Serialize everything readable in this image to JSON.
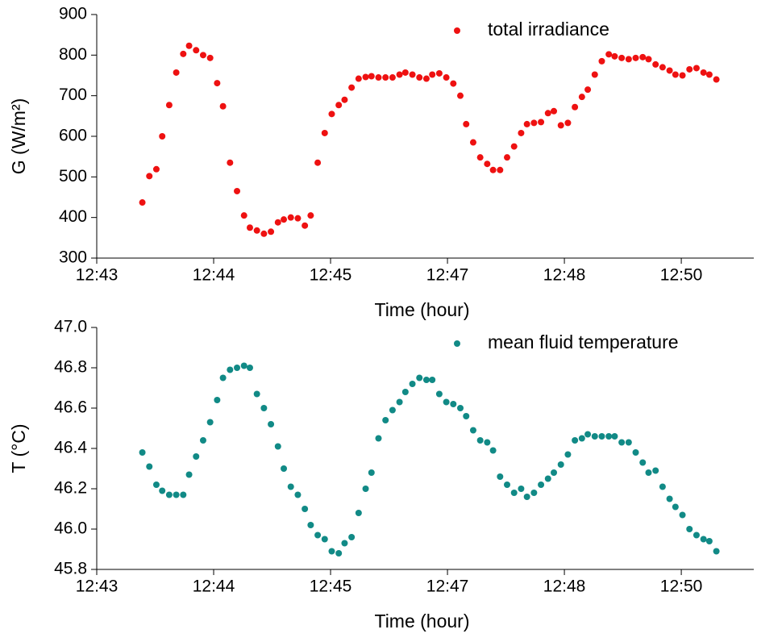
{
  "chart_data": [
    {
      "type": "scatter",
      "ylabel": "G (W/m²)",
      "xlabel": "Time (hour)",
      "xlim": [
        0,
        5.62
      ],
      "xticks": [
        {
          "value": 0,
          "label": "12:43"
        },
        {
          "value": 1,
          "label": "12:44"
        },
        {
          "value": 2,
          "label": "12:45"
        },
        {
          "value": 3,
          "label": "12:47"
        },
        {
          "value": 4,
          "label": "12:48"
        },
        {
          "value": 5,
          "label": "12:50"
        }
      ],
      "ylim": [
        300,
        900
      ],
      "yticks": [
        300,
        400,
        500,
        600,
        700,
        800,
        900
      ],
      "legend": "upper right",
      "x": [
        0.39,
        0.45,
        0.51,
        0.56,
        0.62,
        0.68,
        0.74,
        0.79,
        0.85,
        0.91,
        0.97,
        1.03,
        1.08,
        1.14,
        1.2,
        1.26,
        1.31,
        1.37,
        1.43,
        1.49,
        1.55,
        1.6,
        1.66,
        1.72,
        1.78,
        1.83,
        1.89,
        1.95,
        2.01,
        2.07,
        2.12,
        2.18,
        2.24,
        2.3,
        2.35,
        2.41,
        2.47,
        2.53,
        2.59,
        2.64,
        2.7,
        2.76,
        2.82,
        2.87,
        2.93,
        2.99,
        3.05,
        3.11,
        3.16,
        3.22,
        3.28,
        3.34,
        3.39,
        3.45,
        3.51,
        3.57,
        3.63,
        3.68,
        3.74,
        3.8,
        3.86,
        3.91,
        3.97,
        4.03,
        4.09,
        4.15,
        4.2,
        4.26,
        4.32,
        4.38,
        4.43,
        4.49,
        4.55,
        4.61,
        4.67,
        4.72,
        4.78,
        4.84,
        4.9,
        4.95,
        5.01,
        5.07,
        5.13,
        5.19,
        5.24,
        5.3
      ],
      "series": [
        {
          "name": "total irradiance",
          "color": "#ee1111",
          "values": [
            437,
            502,
            519,
            600,
            677,
            757,
            803,
            823,
            812,
            800,
            793,
            731,
            674,
            535,
            465,
            405,
            375,
            368,
            360,
            365,
            388,
            395,
            400,
            398,
            380,
            405,
            535,
            608,
            655,
            677,
            690,
            720,
            742,
            746,
            748,
            745,
            745,
            745,
            752,
            757,
            752,
            745,
            742,
            752,
            755,
            745,
            730,
            700,
            630,
            585,
            548,
            532,
            517,
            517,
            548,
            575,
            608,
            630,
            633,
            635,
            657,
            662,
            627,
            633,
            672,
            697,
            715,
            752,
            785,
            802,
            797,
            793,
            790,
            793,
            795,
            790,
            777,
            770,
            762,
            752,
            750,
            765,
            768,
            757,
            752,
            740
          ]
        }
      ]
    },
    {
      "type": "scatter",
      "ylabel": "T (°C)",
      "xlabel": "Time (hour)",
      "xlim": [
        0,
        5.62
      ],
      "xticks": [
        {
          "value": 0,
          "label": "12:43"
        },
        {
          "value": 1,
          "label": "12:44"
        },
        {
          "value": 2,
          "label": "12:45"
        },
        {
          "value": 3,
          "label": "12:47"
        },
        {
          "value": 4,
          "label": "12:48"
        },
        {
          "value": 5,
          "label": "12:50"
        }
      ],
      "ylim": [
        45.8,
        47.0
      ],
      "yticks": [
        45.8,
        {
          "value": 46,
          "label": "46.0"
        },
        46.2,
        46.4,
        46.6,
        46.8,
        {
          "value": 47,
          "label": "47.0"
        }
      ],
      "legend": "upper right",
      "x": [
        0.39,
        0.45,
        0.51,
        0.56,
        0.62,
        0.68,
        0.74,
        0.79,
        0.85,
        0.91,
        0.97,
        1.03,
        1.08,
        1.14,
        1.2,
        1.26,
        1.31,
        1.37,
        1.43,
        1.49,
        1.55,
        1.6,
        1.66,
        1.72,
        1.78,
        1.83,
        1.89,
        1.95,
        2.01,
        2.07,
        2.12,
        2.18,
        2.24,
        2.3,
        2.35,
        2.41,
        2.47,
        2.53,
        2.59,
        2.64,
        2.7,
        2.76,
        2.82,
        2.87,
        2.93,
        2.99,
        3.05,
        3.11,
        3.16,
        3.22,
        3.28,
        3.34,
        3.39,
        3.45,
        3.51,
        3.57,
        3.63,
        3.68,
        3.74,
        3.8,
        3.86,
        3.91,
        3.97,
        4.03,
        4.09,
        4.15,
        4.2,
        4.26,
        4.32,
        4.38,
        4.43,
        4.49,
        4.55,
        4.61,
        4.67,
        4.72,
        4.78,
        4.84,
        4.9,
        4.95,
        5.01,
        5.07,
        5.13,
        5.19,
        5.24,
        5.3
      ],
      "series": [
        {
          "name": "mean fluid temperature",
          "color": "#118a86",
          "values": [
            46.38,
            46.31,
            46.22,
            46.19,
            46.17,
            46.17,
            46.17,
            46.27,
            46.36,
            46.44,
            46.53,
            46.64,
            46.75,
            46.79,
            46.8,
            46.81,
            46.8,
            46.67,
            46.6,
            46.52,
            46.41,
            46.3,
            46.21,
            46.17,
            46.1,
            46.02,
            45.97,
            45.95,
            45.89,
            45.88,
            45.93,
            45.96,
            46.08,
            46.2,
            46.28,
            46.45,
            46.54,
            46.59,
            46.63,
            46.68,
            46.72,
            46.75,
            46.74,
            46.74,
            46.67,
            46.63,
            46.62,
            46.6,
            46.56,
            46.49,
            46.44,
            46.43,
            46.39,
            46.26,
            46.22,
            46.18,
            46.2,
            46.16,
            46.18,
            46.22,
            46.25,
            46.28,
            46.32,
            46.37,
            46.44,
            46.45,
            46.47,
            46.46,
            46.46,
            46.46,
            46.46,
            46.43,
            46.43,
            46.38,
            46.33,
            46.28,
            46.29,
            46.21,
            46.15,
            46.11,
            46.07,
            46.0,
            45.97,
            45.95,
            45.94,
            45.89
          ]
        }
      ]
    }
  ]
}
